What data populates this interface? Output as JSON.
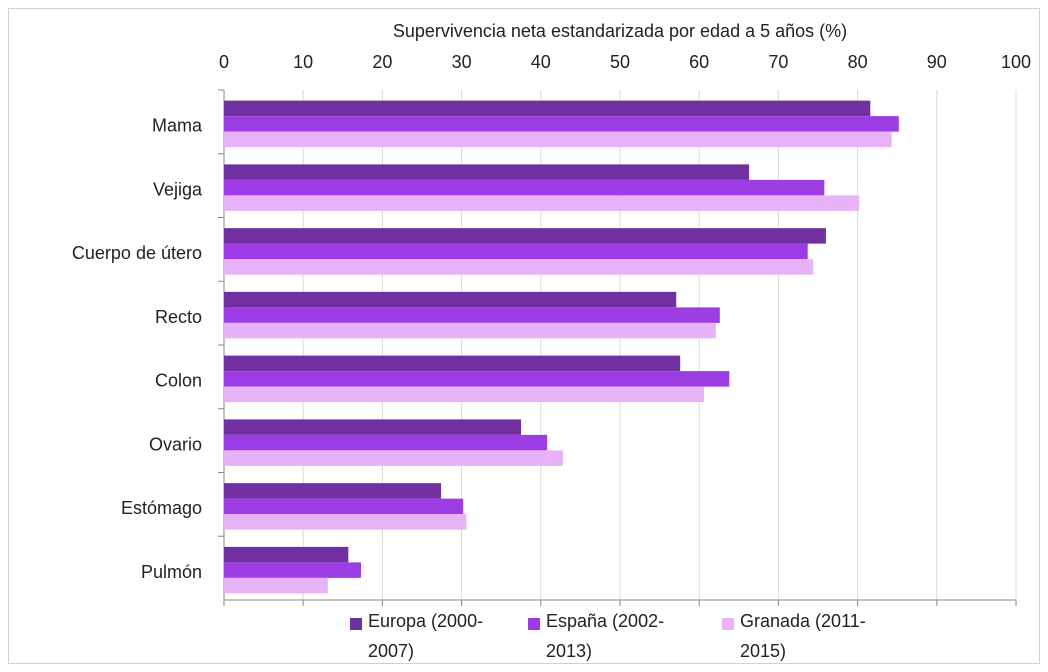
{
  "chart_data": {
    "type": "bar",
    "orientation": "horizontal",
    "title": "Supervivencia neta estandarizada por edad a 5 años (%)",
    "categories": [
      "Mama",
      "Vejiga",
      "Cuerpo de útero",
      "Recto",
      "Colon",
      "Ovario",
      "Estómago",
      "Pulmón"
    ],
    "series": [
      {
        "name": "Europa (2000-2007)",
        "color": "#7030a0",
        "values": [
          81.6,
          66.3,
          76.0,
          57.1,
          57.6,
          37.5,
          27.4,
          15.7
        ]
      },
      {
        "name": "España (2002-2013)",
        "color": "#9b3de3",
        "values": [
          85.2,
          75.8,
          73.7,
          62.6,
          63.8,
          40.8,
          30.2,
          17.3
        ]
      },
      {
        "name": "Granada (2011-2015)",
        "color": "#e8b2f8",
        "values": [
          84.3,
          80.2,
          74.4,
          62.1,
          60.6,
          42.8,
          30.6,
          13.1
        ]
      }
    ],
    "xlim": [
      0,
      100
    ],
    "xticks": [
      0,
      10,
      20,
      30,
      40,
      50,
      60,
      70,
      80,
      90,
      100
    ],
    "grid": true,
    "legend": "bottom"
  }
}
